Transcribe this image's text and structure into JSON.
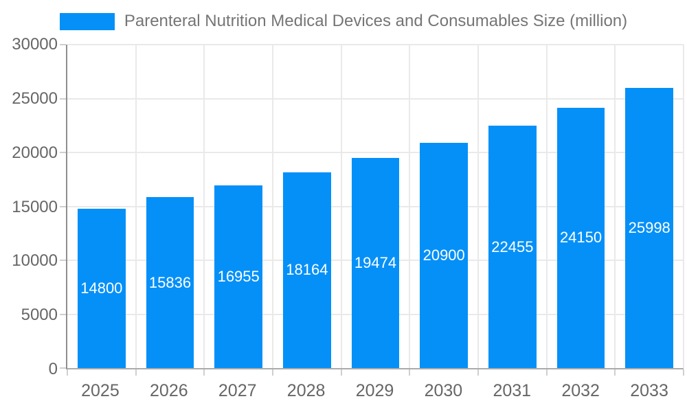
{
  "legend": {
    "label": "Parenteral Nutrition Medical Devices and Consumables Size (million)"
  },
  "chart_data": {
    "type": "bar",
    "title": "Parenteral Nutrition Medical Devices and Consumables Size (million)",
    "categories": [
      "2025",
      "2026",
      "2027",
      "2028",
      "2029",
      "2030",
      "2031",
      "2032",
      "2033"
    ],
    "values": [
      14800,
      15836,
      16955,
      18164,
      19474,
      20900,
      22455,
      24150,
      25998
    ],
    "xlabel": "",
    "ylabel": "",
    "ylim": [
      0,
      30000
    ],
    "y_ticks": [
      0,
      5000,
      10000,
      15000,
      20000,
      25000,
      30000
    ],
    "grid": true,
    "legend_position": "top",
    "value_labels": "inside-center"
  },
  "colors": {
    "bar": "#0590F8",
    "axis_line": "#8E8E8E",
    "axis_line_bottom": "#ABABAB",
    "grid": "#E9E9E9",
    "tick": "#CFCFCF",
    "axis_text": "#666666",
    "legend_text": "#757575",
    "value_text": "#FFFFFF",
    "background": "#FFFFFF"
  }
}
